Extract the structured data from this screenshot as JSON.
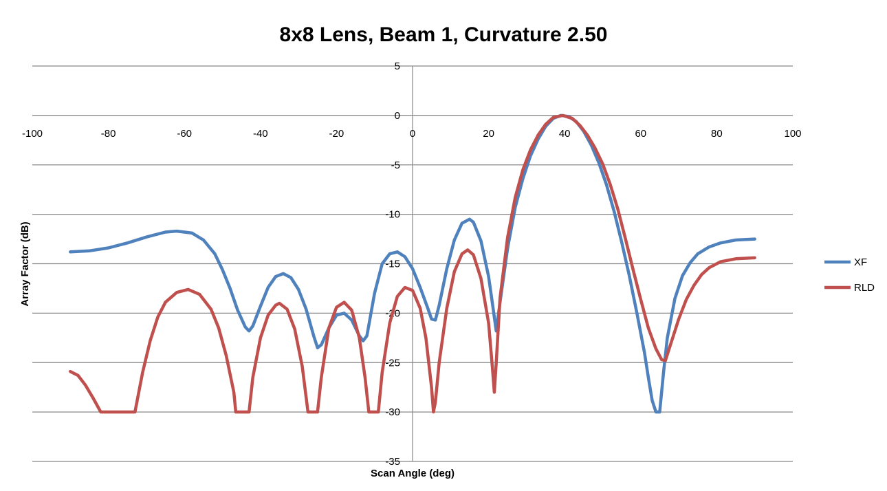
{
  "chart_data": {
    "type": "line",
    "title": "8x8 Lens, Beam 1, Curvature 2.50",
    "xlabel": "Scan Angle (deg)",
    "ylabel": "Array Factor (dB)",
    "xlim": [
      -100,
      100
    ],
    "ylim": [
      -35,
      5
    ],
    "xticks": [
      -100,
      -80,
      -60,
      -40,
      -20,
      0,
      20,
      40,
      60,
      80,
      100
    ],
    "yticks": [
      5,
      0,
      -5,
      -10,
      -15,
      -20,
      -25,
      -30,
      -35
    ],
    "grid": "horizontal",
    "legend_position": "right",
    "series": [
      {
        "name": "XF",
        "color": "#4f81bd",
        "points": [
          [
            -90,
            -13.8
          ],
          [
            -85,
            -13.7
          ],
          [
            -80,
            -13.4
          ],
          [
            -75,
            -12.9
          ],
          [
            -70,
            -12.3
          ],
          [
            -65,
            -11.8
          ],
          [
            -62,
            -11.7
          ],
          [
            -58,
            -11.9
          ],
          [
            -55,
            -12.6
          ],
          [
            -52,
            -14.0
          ],
          [
            -50,
            -15.6
          ],
          [
            -48,
            -17.5
          ],
          [
            -46,
            -19.7
          ],
          [
            -44,
            -21.4
          ],
          [
            -43,
            -21.8
          ],
          [
            -42,
            -21.3
          ],
          [
            -40,
            -19.3
          ],
          [
            -38,
            -17.4
          ],
          [
            -36,
            -16.3
          ],
          [
            -34,
            -16.0
          ],
          [
            -32,
            -16.4
          ],
          [
            -30,
            -17.6
          ],
          [
            -28,
            -19.6
          ],
          [
            -26,
            -22.3
          ],
          [
            -25,
            -23.5
          ],
          [
            -24,
            -23.2
          ],
          [
            -22,
            -21.5
          ],
          [
            -20,
            -20.2
          ],
          [
            -18,
            -20.0
          ],
          [
            -16,
            -20.7
          ],
          [
            -14,
            -22.3
          ],
          [
            -13,
            -22.8
          ],
          [
            -12,
            -22.3
          ],
          [
            -10,
            -18.0
          ],
          [
            -8,
            -15.0
          ],
          [
            -6,
            -14.0
          ],
          [
            -4,
            -13.8
          ],
          [
            -2,
            -14.3
          ],
          [
            0,
            -15.5
          ],
          [
            2,
            -17.4
          ],
          [
            4,
            -19.5
          ],
          [
            5,
            -20.6
          ],
          [
            6,
            -20.7
          ],
          [
            7,
            -19.2
          ],
          [
            9,
            -15.5
          ],
          [
            11,
            -12.6
          ],
          [
            13,
            -10.9
          ],
          [
            15,
            -10.5
          ],
          [
            16,
            -10.8
          ],
          [
            18,
            -12.7
          ],
          [
            20,
            -16.3
          ],
          [
            21,
            -19.0
          ],
          [
            22,
            -21.8
          ],
          [
            23,
            -18.9
          ],
          [
            25,
            -13.4
          ],
          [
            27,
            -9.3
          ],
          [
            29,
            -6.4
          ],
          [
            31,
            -4.1
          ],
          [
            33,
            -2.4
          ],
          [
            35,
            -1.1
          ],
          [
            37,
            -0.3
          ],
          [
            39,
            0.0
          ],
          [
            41,
            -0.1
          ],
          [
            43,
            -0.6
          ],
          [
            45,
            -1.6
          ],
          [
            47,
            -3.0
          ],
          [
            49,
            -4.8
          ],
          [
            51,
            -7.0
          ],
          [
            53,
            -9.7
          ],
          [
            55,
            -12.8
          ],
          [
            57,
            -16.2
          ],
          [
            59,
            -20.0
          ],
          [
            61,
            -24.0
          ],
          [
            62,
            -26.5
          ],
          [
            63,
            -28.8
          ],
          [
            64,
            -30.0
          ],
          [
            65,
            -30.0
          ],
          [
            66,
            -26.0
          ],
          [
            67,
            -22.5
          ],
          [
            69,
            -18.5
          ],
          [
            71,
            -16.2
          ],
          [
            73,
            -14.9
          ],
          [
            75,
            -14.0
          ],
          [
            78,
            -13.3
          ],
          [
            81,
            -12.9
          ],
          [
            85,
            -12.6
          ],
          [
            90,
            -12.5
          ]
        ]
      },
      {
        "name": "RLD",
        "color": "#c0504d",
        "points": [
          [
            -90,
            -25.9
          ],
          [
            -88,
            -26.3
          ],
          [
            -86,
            -27.3
          ],
          [
            -84,
            -28.6
          ],
          [
            -82,
            -30.0
          ],
          [
            -78,
            -30.0
          ],
          [
            -73,
            -30.0
          ],
          [
            -71,
            -26.0
          ],
          [
            -69,
            -22.8
          ],
          [
            -67,
            -20.4
          ],
          [
            -65,
            -18.9
          ],
          [
            -62,
            -17.9
          ],
          [
            -59,
            -17.6
          ],
          [
            -56,
            -18.1
          ],
          [
            -53,
            -19.6
          ],
          [
            -51,
            -21.5
          ],
          [
            -49,
            -24.3
          ],
          [
            -47,
            -28.0
          ],
          [
            -46.5,
            -30.0
          ],
          [
            -43,
            -30.0
          ],
          [
            -42,
            -26.5
          ],
          [
            -40,
            -22.5
          ],
          [
            -38,
            -20.2
          ],
          [
            -36,
            -19.2
          ],
          [
            -35,
            -19.0
          ],
          [
            -33,
            -19.6
          ],
          [
            -31,
            -21.6
          ],
          [
            -29,
            -25.4
          ],
          [
            -28,
            -28.5
          ],
          [
            -27.5,
            -30.0
          ],
          [
            -25,
            -30.0
          ],
          [
            -24,
            -26.5
          ],
          [
            -22,
            -21.5
          ],
          [
            -20,
            -19.4
          ],
          [
            -18,
            -18.9
          ],
          [
            -16,
            -19.7
          ],
          [
            -14,
            -22.5
          ],
          [
            -12.5,
            -26.5
          ],
          [
            -11.5,
            -30.0
          ],
          [
            -9,
            -30.0
          ],
          [
            -8,
            -26.0
          ],
          [
            -6,
            -21.0
          ],
          [
            -4,
            -18.3
          ],
          [
            -2,
            -17.4
          ],
          [
            0,
            -17.7
          ],
          [
            2,
            -19.5
          ],
          [
            3.5,
            -22.5
          ],
          [
            5,
            -27.5
          ],
          [
            5.5,
            -30.0
          ],
          [
            6,
            -29.0
          ],
          [
            7,
            -25.0
          ],
          [
            9,
            -19.5
          ],
          [
            11,
            -15.8
          ],
          [
            13,
            -14.0
          ],
          [
            14.5,
            -13.6
          ],
          [
            16,
            -14.1
          ],
          [
            18,
            -16.5
          ],
          [
            20,
            -21.0
          ],
          [
            21,
            -25.5
          ],
          [
            21.5,
            -28.0
          ],
          [
            22,
            -25.0
          ],
          [
            23,
            -18.5
          ],
          [
            25,
            -12.3
          ],
          [
            27,
            -8.3
          ],
          [
            29,
            -5.5
          ],
          [
            31,
            -3.5
          ],
          [
            33,
            -2.0
          ],
          [
            35,
            -0.9
          ],
          [
            37,
            -0.2
          ],
          [
            39.5,
            0.0
          ],
          [
            42,
            -0.3
          ],
          [
            44,
            -1.0
          ],
          [
            46,
            -2.0
          ],
          [
            48,
            -3.3
          ],
          [
            50,
            -4.9
          ],
          [
            52,
            -7.0
          ],
          [
            54,
            -9.5
          ],
          [
            56,
            -12.5
          ],
          [
            58,
            -15.6
          ],
          [
            60,
            -18.6
          ],
          [
            62,
            -21.5
          ],
          [
            64,
            -23.6
          ],
          [
            65.5,
            -24.7
          ],
          [
            66.5,
            -24.8
          ],
          [
            68,
            -23.0
          ],
          [
            70,
            -20.6
          ],
          [
            72,
            -18.6
          ],
          [
            74,
            -17.2
          ],
          [
            76,
            -16.1
          ],
          [
            78,
            -15.4
          ],
          [
            81,
            -14.8
          ],
          [
            85,
            -14.5
          ],
          [
            90,
            -14.4
          ]
        ]
      }
    ]
  }
}
